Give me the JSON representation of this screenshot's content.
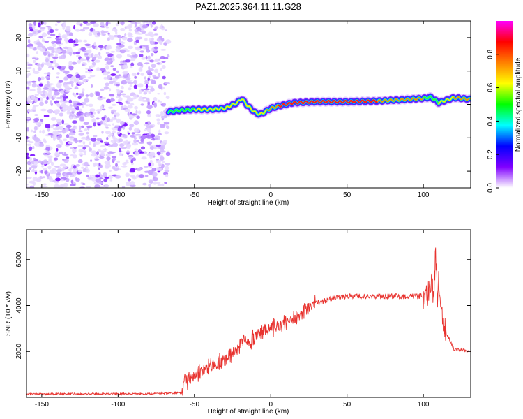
{
  "title": "PAZ1.2025.364.11.11.G28",
  "chart_data": [
    {
      "type": "heatmap",
      "xlabel": "Height of straight line (km)",
      "ylabel": "Frequency (Hz)",
      "xlim": [
        -160,
        131
      ],
      "ylim": [
        -25,
        25
      ],
      "x_ticks": [
        "-150",
        "-100",
        "-50",
        "0",
        "50",
        "100"
      ],
      "x_tick_values": [
        -150,
        -100,
        -50,
        0,
        50,
        100
      ],
      "y_ticks": [
        "-20",
        "-10",
        "0",
        "10",
        "20"
      ],
      "y_tick_values": [
        -20,
        -10,
        0,
        10,
        20
      ],
      "noise_region": {
        "x_start": -160,
        "x_end": -67,
        "note_color": "violet"
      },
      "ridge": {
        "x": [
          -67,
          -60,
          -50,
          -40,
          -30,
          -22,
          -19,
          -15,
          -10,
          -7,
          -3,
          0,
          5,
          15,
          30,
          50,
          70,
          90,
          100,
          105,
          110,
          120,
          131
        ],
        "freq": [
          -2.2,
          -1.8,
          -1.5,
          -1.5,
          -1.2,
          0.5,
          1.8,
          -0.5,
          -2.5,
          -3.0,
          -2.0,
          -1.2,
          -0.5,
          0.5,
          0.8,
          0.8,
          1.0,
          1.5,
          1.8,
          2.2,
          0.5,
          2.0,
          1.5
        ],
        "amplitude": [
          0.3,
          0.5,
          0.7,
          0.75,
          0.75,
          0.8,
          0.75,
          0.7,
          0.8,
          0.7,
          0.8,
          0.85,
          0.95,
          1.0,
          0.9,
          0.95,
          0.9,
          0.85,
          0.75,
          0.6,
          0.7,
          0.85,
          0.8
        ]
      }
    },
    {
      "type": "line",
      "xlabel": "Height of straight line (km)",
      "ylabel": "SNR (10 * v/v)",
      "xlim": [
        -160,
        131
      ],
      "ylim": [
        0,
        7300
      ],
      "x_ticks": [
        "-150",
        "-100",
        "-50",
        "0",
        "50",
        "100"
      ],
      "x_tick_values": [
        -150,
        -100,
        -50,
        0,
        50,
        100
      ],
      "y_ticks": [
        "2000",
        "4000",
        "6000"
      ],
      "y_tick_values": [
        2000,
        4000,
        6000
      ],
      "series": [
        {
          "name": "SNR",
          "color": "#e8332f",
          "x": [
            -160,
            -120,
            -80,
            -58,
            -56,
            -55,
            -53,
            -50,
            -45,
            -40,
            -35,
            -30,
            -25,
            -20,
            -18,
            -15,
            -10,
            -5,
            0,
            10,
            20,
            30,
            40,
            50,
            60,
            70,
            80,
            90,
            100,
            103,
            105,
            107,
            108,
            109,
            110,
            112,
            115,
            120,
            131
          ],
          "values": [
            150,
            150,
            160,
            200,
            1100,
            700,
            800,
            900,
            1200,
            1400,
            1500,
            1600,
            1900,
            2200,
            2600,
            2300,
            2700,
            2900,
            3000,
            3200,
            3600,
            4100,
            4300,
            4400,
            4400,
            4400,
            4400,
            4400,
            4400,
            4500,
            5200,
            4400,
            6700,
            4300,
            5000,
            3800,
            2800,
            2100,
            2000
          ]
        }
      ]
    },
    {
      "type": "colorbar",
      "label": "Normalized spectral amplitude",
      "range": [
        0,
        1
      ],
      "tick_labels": [
        "0.0",
        "0.2",
        "0.4",
        "0.6",
        "0.8"
      ],
      "tick_values": [
        0,
        0.2,
        0.4,
        0.6,
        0.8
      ],
      "colors": [
        "#ffffff",
        "#8000ff",
        "#0000ff",
        "#00ffff",
        "#00ff00",
        "#ffff00",
        "#ff8000",
        "#ff0000",
        "#ff00ff"
      ]
    }
  ]
}
